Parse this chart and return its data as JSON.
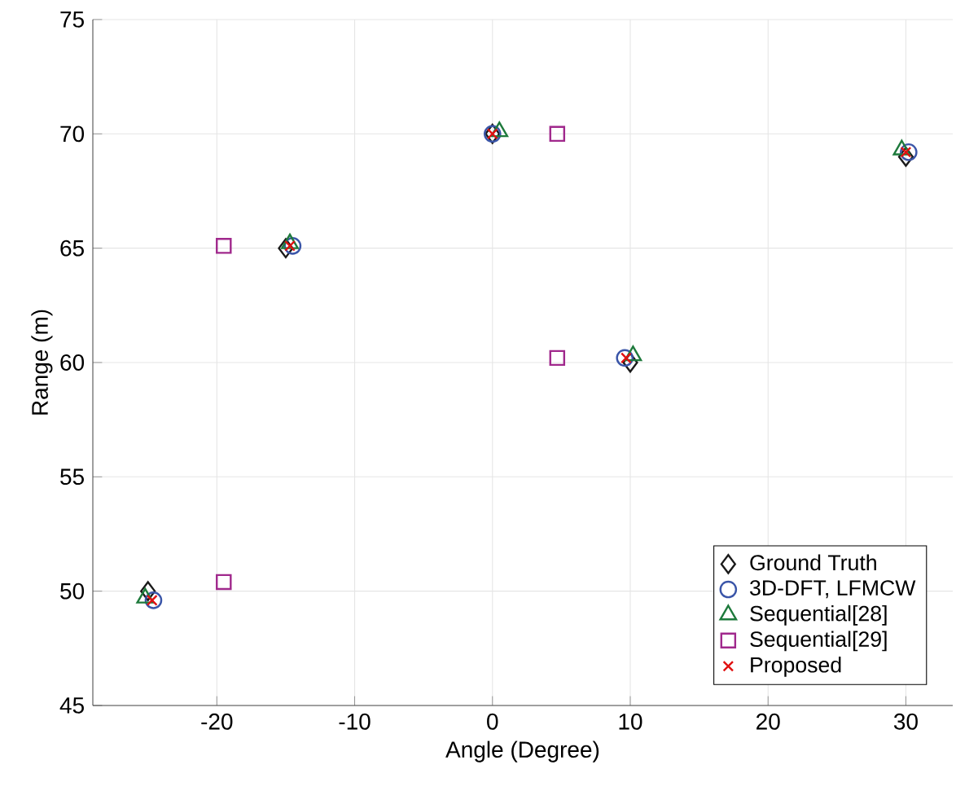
{
  "chart_data": {
    "type": "scatter",
    "xlabel": "Angle (Degree)",
    "ylabel": "Range (m)",
    "xlim": [
      -29,
      33.4
    ],
    "ylim": [
      45,
      75
    ],
    "xticks": [
      -20,
      -10,
      0,
      10,
      20,
      30
    ],
    "yticks": [
      45,
      50,
      55,
      60,
      65,
      70,
      75
    ],
    "grid": true,
    "legend": "bottom right",
    "series": [
      {
        "name": "Ground Truth",
        "color": "#1a1a1a",
        "marker": "diamond",
        "x": [
          -25,
          -15,
          0,
          10,
          30
        ],
        "values": [
          50,
          65,
          70,
          60,
          69
        ]
      },
      {
        "name": "3D-DFT, LFMCW",
        "color": "#3a55a8",
        "marker": "circle",
        "x": [
          -24.6,
          -14.5,
          0,
          9.6,
          30.2
        ],
        "values": [
          49.6,
          65.1,
          70,
          60.2,
          69.2
        ]
      },
      {
        "name": "Sequential[28]",
        "color": "#1e7a3c",
        "marker": "triangle",
        "x": [
          -25.2,
          -14.7,
          0.5,
          10.2,
          29.7
        ],
        "values": [
          49.7,
          65.2,
          70.1,
          60.3,
          69.3
        ]
      },
      {
        "name": "Sequential[29]",
        "color": "#a0288c",
        "marker": "square",
        "x": [
          -19.5,
          -19.5,
          4.7,
          4.7
        ],
        "values": [
          50.4,
          65.1,
          70,
          60.2
        ]
      },
      {
        "name": "Proposed",
        "color": "#e01010",
        "marker": "cross",
        "x": [
          -24.7,
          -14.7,
          0,
          9.7,
          30
        ],
        "values": [
          49.6,
          65.1,
          70,
          60.2,
          69.2
        ]
      }
    ]
  }
}
